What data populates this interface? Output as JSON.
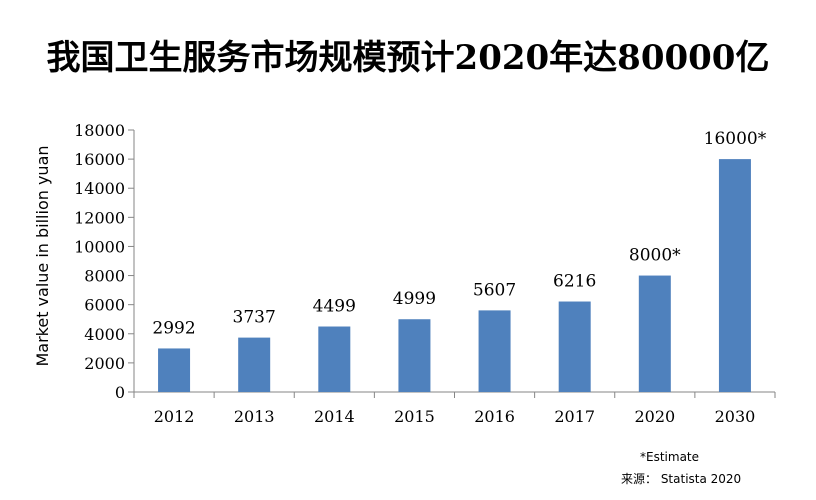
{
  "chart_data": {
    "type": "bar",
    "title": "我国卫生服务市场规模预计2020年达80000亿",
    "ylabel": "Market value in billion yuan",
    "xlabel": "",
    "categories": [
      "2012",
      "2013",
      "2014",
      "2015",
      "2016",
      "2017",
      "2020",
      "2030"
    ],
    "values": [
      2992,
      3737,
      4499,
      4999,
      5607,
      6216,
      8000,
      16000
    ],
    "data_labels": [
      "2992",
      "3737",
      "4499",
      "4999",
      "5607",
      "6216",
      "8000*",
      "16000*"
    ],
    "ylim": [
      0,
      18000
    ],
    "yticks": [
      0,
      2000,
      4000,
      6000,
      8000,
      10000,
      12000,
      14000,
      16000,
      18000
    ],
    "grid": false,
    "bar_color": "#4f81bd",
    "note": "*Estimate",
    "source": "来源： Statista 2020"
  }
}
